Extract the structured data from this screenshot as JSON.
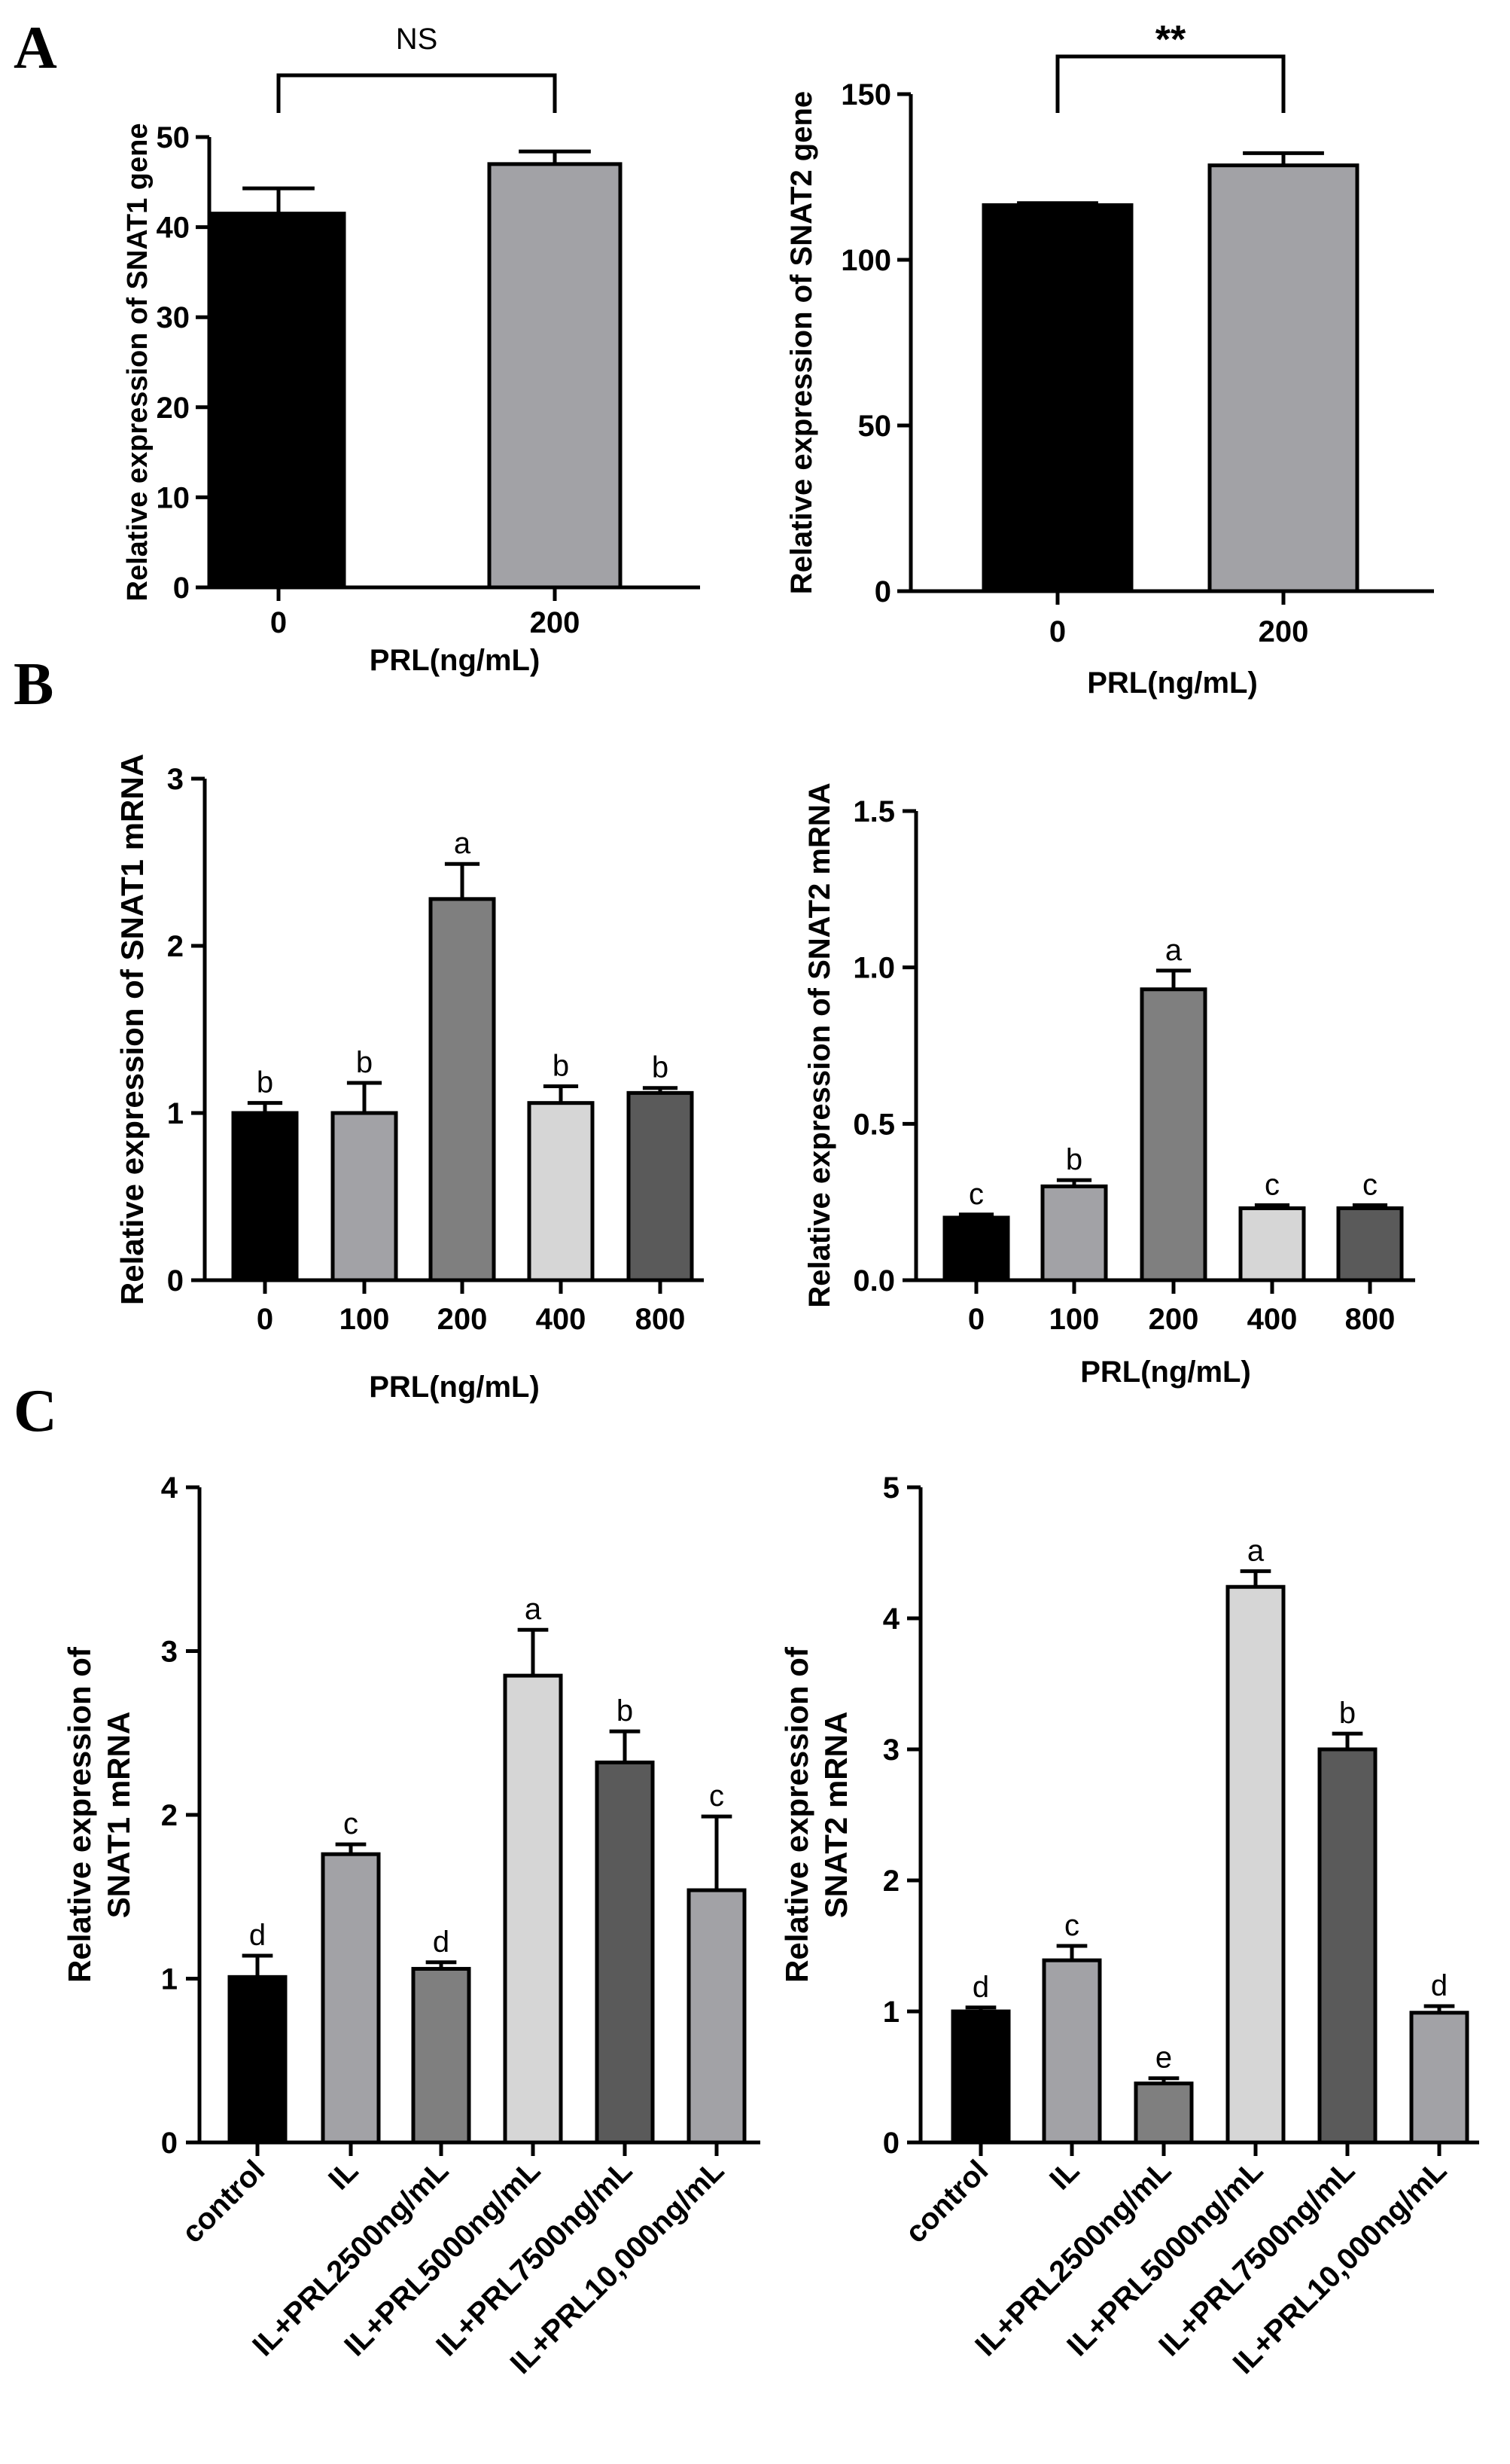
{
  "panel_letters": [
    "A",
    "B",
    "C"
  ],
  "colors": {
    "black": "#000000",
    "mid_gray": "#a2a2a6",
    "dark_gray": "#7f7f7f",
    "light_gray": "#d6d6d6",
    "charcoal": "#5a5a5a"
  },
  "chart_data": [
    {
      "panel": "A",
      "type": "bar",
      "categories": [
        "0",
        "200"
      ],
      "values": [
        41.5,
        47.0
      ],
      "errors": [
        2.8,
        1.4
      ],
      "colors": [
        "#000000",
        "#a2a2a6"
      ],
      "ylim": [
        0,
        50
      ],
      "yticks": [
        "0",
        "10",
        "20",
        "30",
        "40",
        "50"
      ],
      "ylabel": "Relative expression of SNAT1 gene",
      "xlabel": "PRL(ng/mL)",
      "significance": "NS"
    },
    {
      "panel": "A",
      "type": "bar",
      "categories": [
        "0",
        "200"
      ],
      "values": [
        116.5,
        128.5
      ],
      "errors": [
        0.6,
        3.7
      ],
      "colors": [
        "#000000",
        "#a2a2a6"
      ],
      "ylim": [
        0,
        150
      ],
      "yticks": [
        "0",
        "50",
        "100",
        "150"
      ],
      "ylabel": "Relative expression of SNAT2 gene",
      "xlabel": "PRL(ng/mL)",
      "significance": "**"
    },
    {
      "panel": "B",
      "type": "bar",
      "categories": [
        "0",
        "100",
        "200",
        "400",
        "800"
      ],
      "values": [
        1.0,
        1.0,
        2.28,
        1.06,
        1.12
      ],
      "errors": [
        0.06,
        0.18,
        0.21,
        0.1,
        0.03
      ],
      "letters": [
        "b",
        "b",
        "a",
        "b",
        "b"
      ],
      "colors": [
        "#000000",
        "#a2a2a6",
        "#7f7f7f",
        "#d6d6d6",
        "#5a5a5a"
      ],
      "ylim": [
        0,
        3
      ],
      "yticks": [
        "0",
        "1",
        "2",
        "3"
      ],
      "ylabel": "Relative expression of SNAT1 mRNA",
      "xlabel": "PRL(ng/mL)"
    },
    {
      "panel": "B",
      "type": "bar",
      "categories": [
        "0",
        "100",
        "200",
        "400",
        "800"
      ],
      "values": [
        0.2,
        0.3,
        0.93,
        0.23,
        0.23
      ],
      "errors": [
        0.01,
        0.02,
        0.06,
        0.01,
        0.01
      ],
      "letters": [
        "c",
        "b",
        "a",
        "c",
        "c"
      ],
      "colors": [
        "#000000",
        "#a2a2a6",
        "#7f7f7f",
        "#d6d6d6",
        "#5a5a5a"
      ],
      "ylim": [
        0,
        1.5
      ],
      "yticks": [
        "0.0",
        "0.5",
        "1.0",
        "1.5"
      ],
      "ylabel": "Relative expression of SNAT2 mRNA",
      "xlabel": "PRL(ng/mL)"
    },
    {
      "panel": "C",
      "type": "bar",
      "categories": [
        "control",
        "IL",
        "IL+PRL2500ng/mL",
        "IL+PRL5000ng/mL",
        "IL+PRL7500ng/mL",
        "IL+PRL10,000ng/mL"
      ],
      "values": [
        1.01,
        1.76,
        1.06,
        2.85,
        2.32,
        1.54
      ],
      "errors": [
        0.13,
        0.06,
        0.04,
        0.28,
        0.19,
        0.45
      ],
      "letters": [
        "d",
        "c",
        "d",
        "a",
        "b",
        "c"
      ],
      "colors": [
        "#000000",
        "#a2a2a6",
        "#7f7f7f",
        "#d6d6d6",
        "#5a5a5a",
        "#a2a2a6"
      ],
      "ylim": [
        0,
        4
      ],
      "yticks": [
        "0",
        "1",
        "2",
        "3",
        "4"
      ],
      "ylabel_lines": [
        "Relative expression of",
        "SNAT1 mRNA"
      ]
    },
    {
      "panel": "C",
      "type": "bar",
      "categories": [
        "control",
        "IL",
        "IL+PRL2500ng/mL",
        "IL+PRL5000ng/mL",
        "IL+PRL7500ng/mL",
        "IL+PRL10,000ng/mL"
      ],
      "values": [
        1.0,
        1.39,
        0.45,
        4.24,
        3.0,
        0.99
      ],
      "errors": [
        0.03,
        0.11,
        0.04,
        0.12,
        0.12,
        0.05
      ],
      "letters": [
        "d",
        "c",
        "e",
        "a",
        "b",
        "d"
      ],
      "colors": [
        "#000000",
        "#a2a2a6",
        "#7f7f7f",
        "#d6d6d6",
        "#5a5a5a",
        "#a2a2a6"
      ],
      "ylim": [
        0,
        5
      ],
      "yticks": [
        "0",
        "1",
        "2",
        "3",
        "4",
        "5"
      ],
      "ylabel_lines": [
        "Relative expression of",
        "SNAT2 mRNA"
      ]
    }
  ]
}
